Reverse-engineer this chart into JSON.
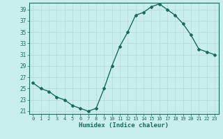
{
  "x": [
    0,
    1,
    2,
    3,
    4,
    5,
    6,
    7,
    8,
    9,
    10,
    11,
    12,
    13,
    14,
    15,
    16,
    17,
    18,
    19,
    20,
    21,
    22,
    23
  ],
  "y": [
    26,
    25,
    24.5,
    23.5,
    23,
    22,
    21.5,
    21,
    21.5,
    25,
    29,
    32.5,
    35,
    38,
    38.5,
    39.5,
    40,
    39,
    38,
    36.5,
    34.5,
    32,
    31.5,
    31
  ],
  "line_color": "#1a6b5a",
  "marker": "D",
  "marker_size": 2.0,
  "bg_color": "#c8eeee",
  "grid_color": "#b8d8d8",
  "xlabel": "Humidex (Indice chaleur)",
  "xlim": [
    -0.5,
    23.5
  ],
  "ylim": [
    20.5,
    40.2
  ],
  "yticks": [
    21,
    23,
    25,
    27,
    29,
    31,
    33,
    35,
    37,
    39
  ],
  "xticks": [
    0,
    1,
    2,
    3,
    4,
    5,
    6,
    7,
    8,
    9,
    10,
    11,
    12,
    13,
    14,
    15,
    16,
    17,
    18,
    19,
    20,
    21,
    22,
    23
  ],
  "xlabel_fontsize": 6.5,
  "ytick_fontsize": 5.5,
  "xtick_fontsize": 5.0,
  "line_width": 1.0
}
